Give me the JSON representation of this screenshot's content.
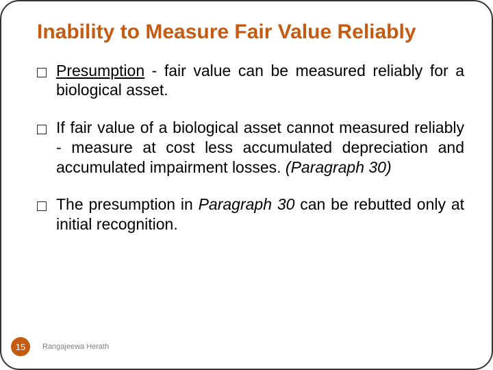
{
  "title": {
    "text": "Inability to Measure Fair Value Reliably",
    "color": "#c55a11",
    "fontsize": 30
  },
  "body": {
    "fontsize": 23,
    "color": "#000000",
    "bullet_marker": "□",
    "bullets": [
      {
        "segments": [
          {
            "text": "Presumption",
            "underline": true
          },
          {
            "text": " - fair value can be measured reliably for a biological asset."
          }
        ]
      },
      {
        "segments": [
          {
            "text": "If fair value of a biological asset cannot measured reliably - measure at cost less accumulated depreciation and accumulated impairment losses.  "
          },
          {
            "text": "(Paragraph 30)",
            "italic": true
          }
        ]
      },
      {
        "segments": [
          {
            "text": "The presumption in "
          },
          {
            "text": "Paragraph 30",
            "italic": true
          },
          {
            "text": " can be rebutted only at initial recognition."
          }
        ]
      }
    ]
  },
  "footer": {
    "page_number": "15",
    "badge_bg": "#c55a11",
    "badge_color": "#ffffff",
    "badge_size": 28,
    "badge_fontsize": 13,
    "author": "Rangajeewa Herath",
    "author_color": "#7f7f7f",
    "author_fontsize": 11
  }
}
